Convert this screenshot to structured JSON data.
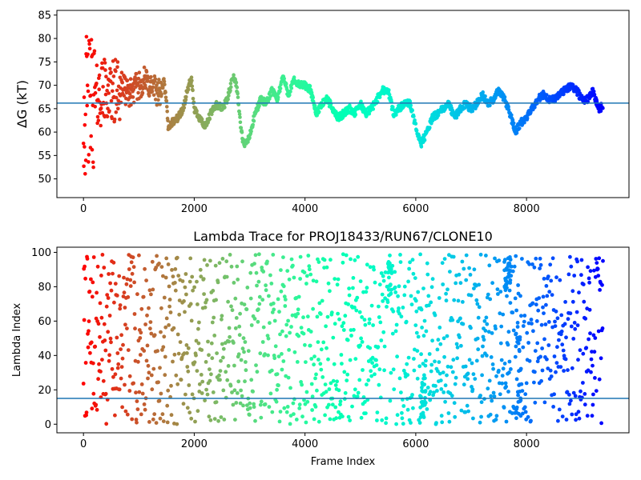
{
  "chart_data": [
    {
      "type": "scatter",
      "title": "",
      "xlabel": "",
      "ylabel": "ΔG (kT)",
      "xlim": [
        -480,
        9850
      ],
      "ylim": [
        46,
        86
      ],
      "xticks": [
        0,
        2000,
        4000,
        6000,
        8000
      ],
      "xtick_labels": [
        "0",
        "2000",
        "4000",
        "6000",
        "8000"
      ],
      "yticks": [
        50,
        55,
        60,
        65,
        70,
        75,
        80,
        85
      ],
      "ytick_labels": [
        "50",
        "55",
        "60",
        "65",
        "70",
        "75",
        "80",
        "85"
      ],
      "hline": 66.2,
      "hline_color": "#1f77b4",
      "colormap": "rainbow",
      "color_scale": "reversed: red at frame 0, violet at end",
      "grid": false,
      "x_max": 9380,
      "trace_knots": [
        [
          0,
          65
        ],
        [
          100,
          66
        ],
        [
          200,
          67
        ],
        [
          300,
          68
        ],
        [
          400,
          69
        ],
        [
          500,
          68
        ],
        [
          600,
          69
        ],
        [
          700,
          70
        ],
        [
          800,
          68
        ],
        [
          900,
          69
        ],
        [
          1000,
          70
        ],
        [
          1100,
          71
        ],
        [
          1200,
          70
        ],
        [
          1300,
          69
        ],
        [
          1400,
          68
        ],
        [
          1450,
          71
        ],
        [
          1500,
          66
        ],
        [
          1530,
          61
        ],
        [
          1600,
          62
        ],
        [
          1700,
          63
        ],
        [
          1800,
          65
        ],
        [
          1900,
          70
        ],
        [
          1950,
          71
        ],
        [
          2000,
          65
        ],
        [
          2100,
          63
        ],
        [
          2200,
          61
        ],
        [
          2300,
          64
        ],
        [
          2400,
          66
        ],
        [
          2500,
          65
        ],
        [
          2600,
          67
        ],
        [
          2700,
          72
        ],
        [
          2750,
          71
        ],
        [
          2800,
          66
        ],
        [
          2850,
          60
        ],
        [
          2900,
          57
        ],
        [
          3000,
          59
        ],
        [
          3100,
          64
        ],
        [
          3200,
          67
        ],
        [
          3300,
          66
        ],
        [
          3400,
          69
        ],
        [
          3500,
          67
        ],
        [
          3600,
          72
        ],
        [
          3700,
          68
        ],
        [
          3800,
          71
        ],
        [
          3900,
          70
        ],
        [
          4000,
          70
        ],
        [
          4100,
          69
        ],
        [
          4200,
          64
        ],
        [
          4300,
          66
        ],
        [
          4400,
          67
        ],
        [
          4500,
          65
        ],
        [
          4600,
          63
        ],
        [
          4700,
          64
        ],
        [
          4800,
          65
        ],
        [
          4900,
          64
        ],
        [
          5000,
          66
        ],
        [
          5100,
          64
        ],
        [
          5200,
          65
        ],
        [
          5300,
          67
        ],
        [
          5400,
          69
        ],
        [
          5500,
          69
        ],
        [
          5600,
          64
        ],
        [
          5700,
          65
        ],
        [
          5800,
          66
        ],
        [
          5900,
          66
        ],
        [
          6000,
          61
        ],
        [
          6100,
          57.5
        ],
        [
          6200,
          60
        ],
        [
          6300,
          63
        ],
        [
          6400,
          64
        ],
        [
          6500,
          65
        ],
        [
          6600,
          66
        ],
        [
          6700,
          63
        ],
        [
          6800,
          65
        ],
        [
          6900,
          66
        ],
        [
          7000,
          65
        ],
        [
          7100,
          66
        ],
        [
          7200,
          68
        ],
        [
          7300,
          66
        ],
        [
          7400,
          67
        ],
        [
          7500,
          69
        ],
        [
          7600,
          67
        ],
        [
          7700,
          64
        ],
        [
          7800,
          60
        ],
        [
          7900,
          62
        ],
        [
          8000,
          63
        ],
        [
          8100,
          65
        ],
        [
          8200,
          67
        ],
        [
          8300,
          68
        ],
        [
          8400,
          67
        ],
        [
          8500,
          67
        ],
        [
          8600,
          68
        ],
        [
          8700,
          69
        ],
        [
          8800,
          70
        ],
        [
          8900,
          69
        ],
        [
          9000,
          67
        ],
        [
          9100,
          67
        ],
        [
          9200,
          69
        ],
        [
          9300,
          65
        ],
        [
          9380,
          65.5
        ]
      ]
    },
    {
      "type": "scatter",
      "title": "Lambda Trace for PROJ18433/RUN67/CLONE10",
      "xlabel": "Frame Index",
      "ylabel": "Lambda Index",
      "xlim": [
        -480,
        9850
      ],
      "ylim": [
        -5,
        103
      ],
      "xticks": [
        0,
        2000,
        4000,
        6000,
        8000
      ],
      "xtick_labels": [
        "0",
        "2000",
        "4000",
        "6000",
        "8000"
      ],
      "yticks": [
        0,
        20,
        40,
        60,
        80,
        100
      ],
      "ytick_labels": [
        "0",
        "20",
        "40",
        "60",
        "80",
        "100"
      ],
      "hline": 15,
      "hline_color": "#1f77b4",
      "colormap": "rainbow",
      "color_scale": "reversed: red at frame 0, violet at end",
      "grid": false,
      "x_max": 9380,
      "lambda_range": [
        0,
        99
      ],
      "dense_bands": [
        [
          7600,
          7720,
          77,
          99
        ],
        [
          5500,
          5560,
          75,
          99
        ],
        [
          6080,
          6180,
          2,
          30
        ],
        [
          7800,
          7900,
          1,
          60
        ]
      ]
    }
  ]
}
